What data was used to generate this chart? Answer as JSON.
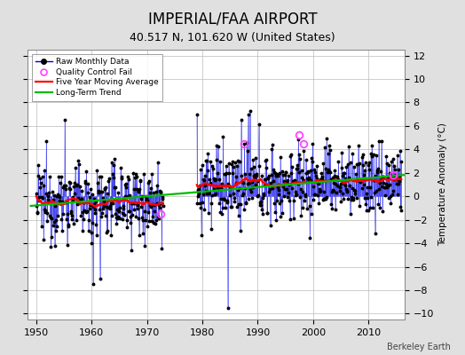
{
  "title": "IMPERIAL/FAA AIRPORT",
  "subtitle": "40.517 N, 101.620 W (United States)",
  "ylabel_right": "Temperature Anomaly (°C)",
  "credit": "Berkeley Earth",
  "ylim": [
    -10.5,
    12.5
  ],
  "yticks": [
    -10,
    -8,
    -6,
    -4,
    -2,
    0,
    2,
    4,
    6,
    8,
    10,
    12
  ],
  "xlim": [
    1948.5,
    2016.5
  ],
  "xticks": [
    1950,
    1960,
    1970,
    1980,
    1990,
    2000,
    2010
  ],
  "raw_color": "#4444ff",
  "raw_color_dark": "#0000cc",
  "ma_color": "#ff0000",
  "trend_color": "#00bb00",
  "qc_color": "#ff44ff",
  "bg_color": "#e0e0e0",
  "plot_bg": "#ffffff",
  "title_fontsize": 12,
  "subtitle_fontsize": 9,
  "seed": 12345,
  "period1_start": 1950,
  "period1_end": 1973,
  "period2_start": 1979,
  "period2_end": 2016
}
